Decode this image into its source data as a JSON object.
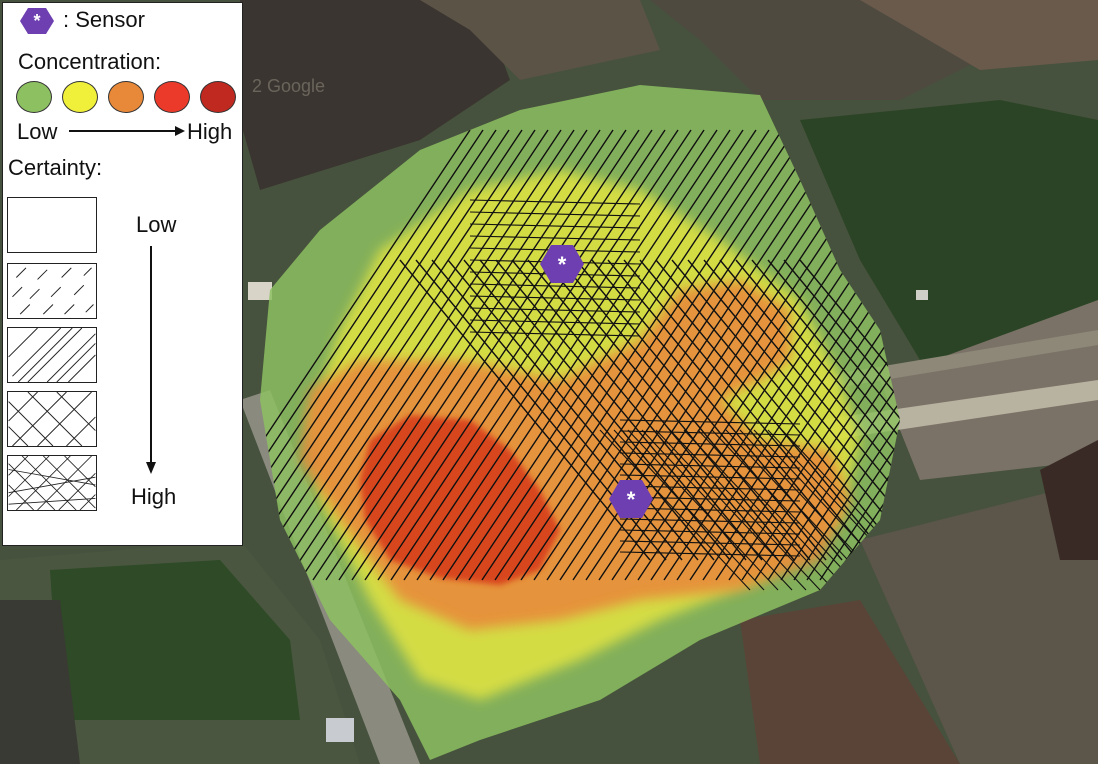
{
  "map": {
    "watermark": "2 Google",
    "sensor_symbol": "*",
    "colors": {
      "field_dark": "#2f3a2b",
      "field_light": "#5a6b4e",
      "vegetation": "#2d4a24",
      "road": "#8a8a80",
      "plume_green": "#8dc060",
      "plume_yellow": "#e6e640",
      "plume_orange": "#e8893a",
      "plume_red": "#e03a28",
      "plume_darkred": "#c8371f",
      "sensor": "#6e3fb0"
    }
  },
  "legend": {
    "sensor_symbol": "*",
    "sensor_label": ": Sensor",
    "concentration_title": "Concentration:",
    "concentration_colors": [
      "#8dc060",
      "#f0f03a",
      "#e8893a",
      "#ec3a2a",
      "#c0291f"
    ],
    "low_label": "Low",
    "high_label": "High",
    "certainty_title": "Certainty:",
    "certainty_low": "Low",
    "certainty_high": "High",
    "certainty_levels": [
      "none",
      "sparse-dashed",
      "single-hatch",
      "cross-hatch",
      "dense-cross-hatch"
    ]
  }
}
